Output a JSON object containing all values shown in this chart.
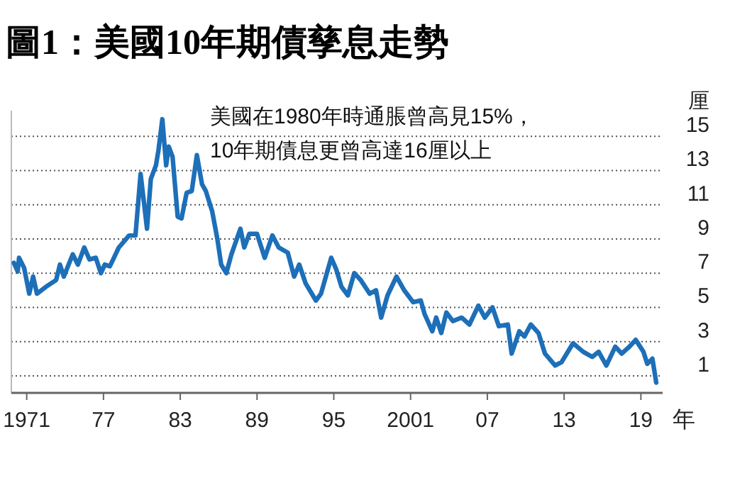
{
  "chart_data": {
    "type": "line",
    "title": "圖1：美國10年期債孳息走勢",
    "xlabel": "年",
    "ylabel": "厘",
    "annotations": [
      "美國在1980年時通脹曾高見15%，\n10年期債息更曾高達16厘以上"
    ],
    "x": [
      1970.0,
      1970.3,
      1970.4,
      1970.8,
      1971.2,
      1971.5,
      1971.8,
      1972.5,
      1973.3,
      1973.6,
      1973.9,
      1974.6,
      1975.0,
      1975.5,
      1975.9,
      1976.4,
      1976.8,
      1977.1,
      1977.5,
      1978.2,
      1979.0,
      1979.5,
      1979.9,
      1980.2,
      1980.4,
      1980.7,
      1981.1,
      1981.3,
      1981.6,
      1981.9,
      1982.1,
      1982.4,
      1982.8,
      1983.1,
      1983.5,
      1983.9,
      1984.3,
      1984.7,
      1985.0,
      1985.5,
      1985.9,
      1986.2,
      1986.6,
      1987.0,
      1987.7,
      1988.0,
      1988.4,
      1989.0,
      1989.6,
      1990.2,
      1990.7,
      1991.4,
      1991.9,
      1992.3,
      1992.8,
      1993.6,
      1994.0,
      1994.8,
      1995.2,
      1995.6,
      1996.1,
      1996.6,
      1997.1,
      1997.8,
      1998.3,
      1998.7,
      1999.2,
      1999.9,
      2000.5,
      2001.2,
      2001.8,
      2002.1,
      2002.7,
      2003.0,
      2003.4,
      2003.8,
      2004.3,
      2005.0,
      2005.6,
      2006.3,
      2006.8,
      2007.4,
      2007.9,
      2008.6,
      2008.9,
      2009.5,
      2009.9,
      2010.4,
      2011.0,
      2011.5,
      2012.3,
      2012.8,
      2013.7,
      2014.5,
      2015.2,
      2015.7,
      2016.3,
      2017.0,
      2017.5,
      2018.1,
      2018.6,
      2019.2,
      2019.5,
      2019.9,
      2020.2
    ],
    "series": [
      {
        "color": "#1d6fb8",
        "values": [
          7.6,
          7.1,
          7.9,
          7.3,
          5.8,
          6.8,
          5.8,
          6.2,
          6.6,
          7.5,
          6.8,
          8.1,
          7.5,
          8.5,
          7.8,
          7.9,
          7.0,
          7.5,
          7.4,
          8.5,
          9.2,
          9.2,
          12.8,
          10.9,
          9.6,
          12.5,
          13.3,
          14.2,
          16.0,
          13.3,
          14.4,
          13.8,
          10.3,
          10.2,
          11.7,
          11.8,
          13.9,
          12.2,
          11.8,
          10.6,
          9.0,
          7.5,
          7.0,
          8.1,
          9.6,
          8.5,
          9.3,
          9.3,
          7.9,
          9.2,
          8.5,
          8.2,
          6.8,
          7.5,
          6.4,
          5.4,
          5.8,
          7.9,
          7.2,
          6.2,
          5.7,
          7.0,
          6.6,
          5.8,
          6.0,
          4.4,
          5.7,
          6.8,
          6.0,
          5.3,
          5.4,
          4.6,
          3.6,
          4.4,
          3.5,
          4.7,
          4.2,
          4.4,
          4.0,
          5.1,
          4.4,
          5.0,
          3.9,
          4.0,
          2.3,
          3.6,
          3.3,
          4.0,
          3.5,
          2.3,
          1.6,
          1.8,
          2.9,
          2.4,
          2.1,
          2.4,
          1.6,
          2.7,
          2.3,
          2.7,
          3.1,
          2.4,
          1.7,
          2.0,
          0.6
        ]
      }
    ],
    "xlim": [
      1969.8,
      2020.7
    ],
    "ylim": [
      0,
      16.5
    ],
    "xticks": [
      {
        "value": 1971,
        "label": "1971"
      },
      {
        "value": 1977,
        "label": "77"
      },
      {
        "value": 1983,
        "label": "83"
      },
      {
        "value": 1989,
        "label": "89"
      },
      {
        "value": 1995,
        "label": "95"
      },
      {
        "value": 2001,
        "label": "2001"
      },
      {
        "value": 2007,
        "label": "07"
      },
      {
        "value": 2013,
        "label": "13"
      },
      {
        "value": 2019,
        "label": "19"
      }
    ],
    "yticks": [
      1,
      3,
      5,
      7,
      9,
      11,
      13,
      15
    ],
    "grid": "y",
    "marker": "none",
    "line_style": "solid"
  }
}
